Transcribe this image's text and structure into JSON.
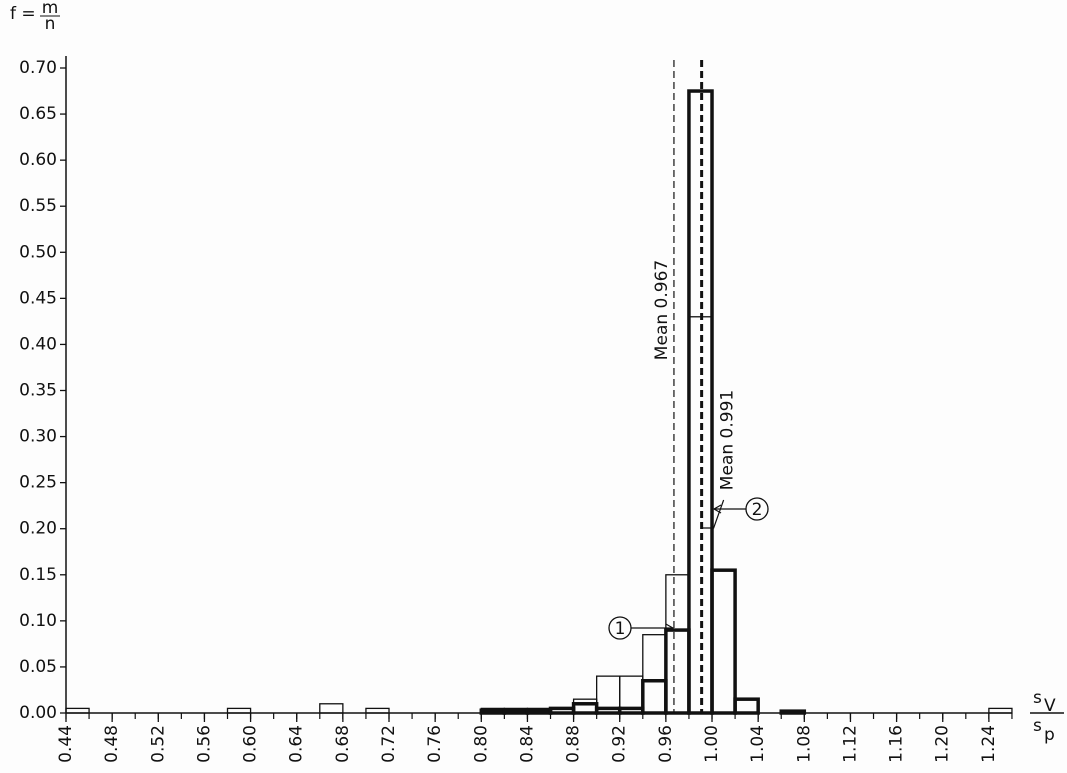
{
  "chart_data": {
    "type": "histogram",
    "ylabel": {
      "lhs": "f =",
      "num": "m",
      "den": "n"
    },
    "xlabel": {
      "num": "s",
      "num_sub": "V",
      "den": "s",
      "den_sub": "p"
    },
    "bins": [
      0.44,
      0.46,
      0.48,
      0.5,
      0.52,
      0.54,
      0.56,
      0.58,
      0.6,
      0.62,
      0.64,
      0.66,
      0.68,
      0.7,
      0.72,
      0.74,
      0.76,
      0.78,
      0.8,
      0.82,
      0.84,
      0.86,
      0.88,
      0.9,
      0.92,
      0.94,
      0.96,
      0.98,
      1.0,
      1.02,
      1.04,
      1.06,
      1.08,
      1.1,
      1.12,
      1.14,
      1.16,
      1.18,
      1.2,
      1.22,
      1.24,
      1.26
    ],
    "series": [
      {
        "name": "1",
        "color": "#111111",
        "width": 1.3,
        "values": [
          0.005,
          0,
          0,
          0,
          0,
          0,
          0,
          0.005,
          0,
          0,
          0,
          0.01,
          0,
          0.005,
          0,
          0,
          0,
          0,
          0.005,
          0.005,
          0.005,
          0.005,
          0.015,
          0.04,
          0.04,
          0.085,
          0.15,
          0.43,
          0.155,
          0.015,
          0,
          0.003,
          0,
          0,
          0,
          0,
          0,
          0,
          0,
          0,
          0.005
        ]
      },
      {
        "name": "2",
        "color": "#111111",
        "width": 3.5,
        "values": [
          0,
          0,
          0,
          0,
          0,
          0,
          0,
          0,
          0,
          0,
          0,
          0,
          0,
          0,
          0,
          0,
          0,
          0,
          0.003,
          0.003,
          0.003,
          0.005,
          0.01,
          0.005,
          0.005,
          0.035,
          0.09,
          0.675,
          0.155,
          0.015,
          0,
          0.002,
          0,
          0,
          0,
          0,
          0,
          0,
          0,
          0,
          0
        ]
      }
    ],
    "means": [
      {
        "x": 0.967,
        "label": "Mean 0.967",
        "width": 1.2
      },
      {
        "x": 0.991,
        "label": "Mean 0.991",
        "width": 3
      }
    ],
    "xlim": [
      0.44,
      1.26
    ],
    "xticks": [
      0.44,
      0.48,
      0.52,
      0.56,
      {
        "value": 0.6,
        "label": "0.60"
      },
      0.64,
      0.68,
      0.72,
      0.76,
      {
        "value": 0.8,
        "label": "0.80"
      },
      0.84,
      0.88,
      0.92,
      0.96,
      {
        "value": 1.0,
        "label": "1.00"
      },
      1.04,
      1.08,
      1.12,
      1.16,
      {
        "value": 1.2,
        "label": "1.20"
      },
      1.24
    ],
    "ylim": [
      0,
      0.7
    ],
    "yticks": [
      {
        "value": 0,
        "label": "0.00"
      },
      0.05,
      {
        "value": 0.1,
        "label": "0.10"
      },
      0.15,
      {
        "value": 0.2,
        "label": "0.20"
      },
      0.25,
      {
        "value": 0.3,
        "label": "0.30"
      },
      0.35,
      {
        "value": 0.4,
        "label": "0.40"
      },
      0.45,
      {
        "value": 0.5,
        "label": "0.50"
      },
      0.55,
      {
        "value": 0.6,
        "label": "0.60"
      },
      0.65,
      {
        "value": 0.7,
        "label": "0.70"
      }
    ]
  }
}
